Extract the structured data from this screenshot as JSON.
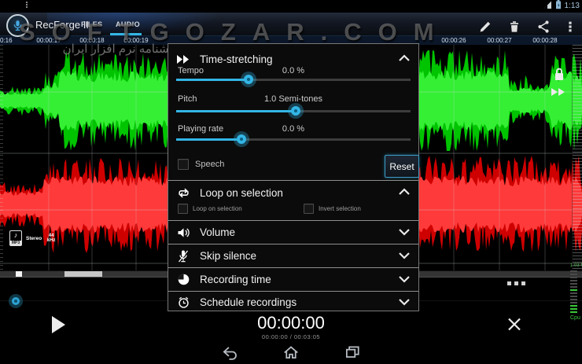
{
  "status_bar": {
    "time": "1:13"
  },
  "action_bar": {
    "app_title": "RecForge II",
    "tabs": [
      {
        "label": "FILES",
        "active": false
      },
      {
        "label": "AUDIO",
        "active": true
      }
    ]
  },
  "watermark": {
    "line1": "SOFTGOZAR.COM",
    "line2": "اولین دانشنامه نرم افزار ایران"
  },
  "timeline": {
    "left_ticks": [
      "0:16",
      "00:00:17",
      "00:00:18",
      "00:00:19"
    ],
    "right_ticks": [
      "00:00:26",
      "00:00:27",
      "00:00:28"
    ]
  },
  "file_badge": {
    "format": "MP3",
    "channels": "Stereo",
    "rate": "44 kHz"
  },
  "panel": {
    "time_stretching": {
      "title": "Time-stretching",
      "sliders": [
        {
          "label": "Tempo",
          "value": "0.0 %",
          "percent": 31
        },
        {
          "label": "Pitch",
          "value": "1.0 Semi-tones",
          "percent": 51
        },
        {
          "label": "Playing rate",
          "value": "0.0 %",
          "percent": 28
        }
      ],
      "speech_label": "Speech",
      "reset_label": "Reset"
    },
    "loop_section": {
      "title": "Loop on selection",
      "checkbox1": "Loop on selection",
      "checkbox2": "Invert selection"
    },
    "collapsed": [
      {
        "title": "Volume"
      },
      {
        "title": "Skip silence"
      },
      {
        "title": "Recording time"
      },
      {
        "title": "Schedule recordings"
      }
    ]
  },
  "transport": {
    "timer": "00:00:00",
    "progress": "00:00:00 / 00:03:05"
  },
  "meter": {
    "top_label": "1.03 M",
    "bottom_label": "Cpu"
  },
  "colors": {
    "accent": "#33b5e5",
    "wave_green": "#00c400",
    "wave_red": "#cf0000"
  }
}
